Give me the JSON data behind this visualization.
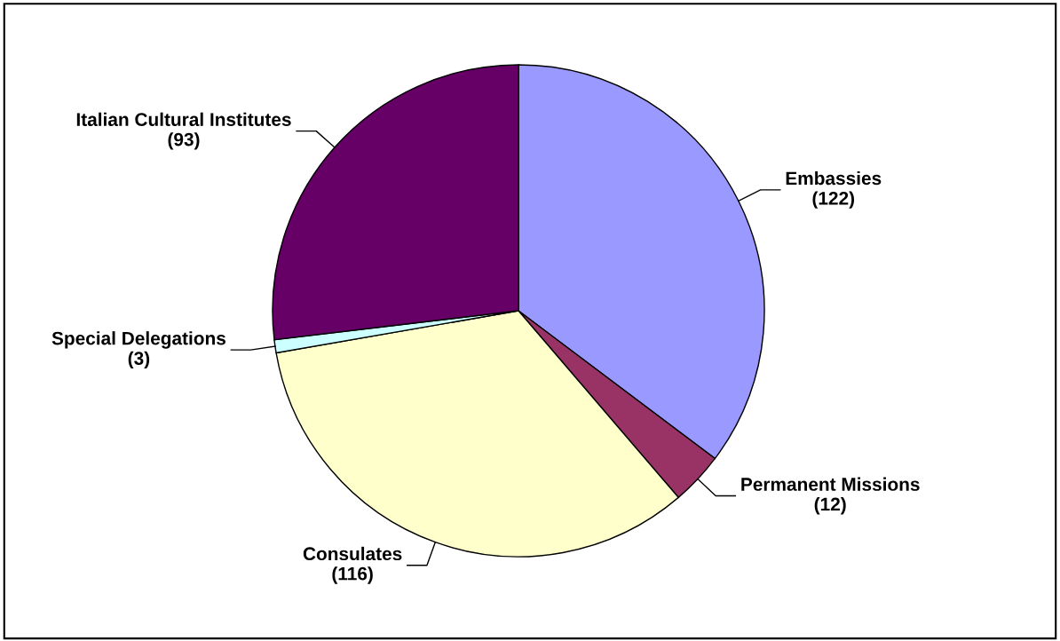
{
  "chart_data": {
    "type": "pie",
    "categories": [
      "Embassies",
      "Permanent Missions",
      "Consulates",
      "Special Delegations",
      "Italian Cultural Institutes"
    ],
    "values": [
      122,
      12,
      116,
      3,
      93
    ],
    "colors": [
      "#9999ff",
      "#993366",
      "#ffffcc",
      "#ccffff",
      "#660066"
    ],
    "value_labels": [
      "(122)",
      "(12)",
      "(116)",
      "(3)",
      "(93)"
    ],
    "legend": false
  }
}
